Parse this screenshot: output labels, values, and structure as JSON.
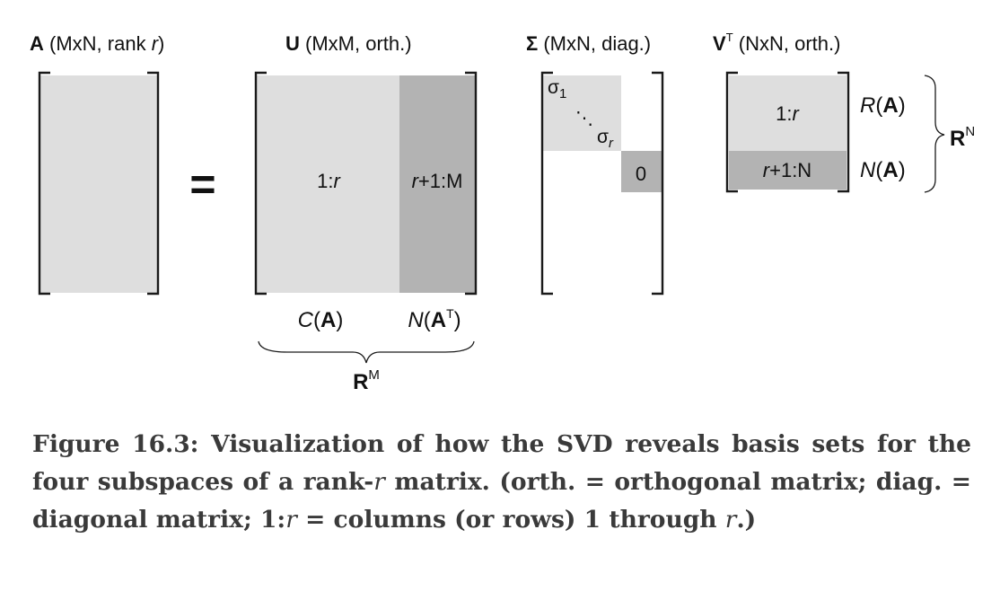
{
  "matrix_a": {
    "symbol": "A",
    "desc": " (MxN, rank ",
    "rank": "r",
    "close": ")"
  },
  "equals": "=",
  "matrix_u": {
    "symbol": "U",
    "desc": " (MxM, orth.)",
    "left_cell_num": "1:",
    "left_cell_var": "r",
    "right_cell_var": "r",
    "right_cell_num": "+1:M",
    "col_space": {
      "fn": "C",
      "open": "(",
      "arg": "A",
      "close": ")"
    },
    "left_null": {
      "fn": "N",
      "open": "(",
      "arg": "A",
      "sup": "T",
      "close": ")"
    },
    "space": {
      "sym": "R",
      "sup": "M"
    }
  },
  "matrix_sigma": {
    "symbol": "Σ",
    "desc": " (MxN, diag.)",
    "sigma": "σ",
    "sigma_first_sub": "1",
    "sigma_last_sub": "r",
    "dots": "⋱",
    "zero": "0"
  },
  "matrix_vt": {
    "symbol": "V",
    "sup": "T",
    "desc": " (NxN, orth.)",
    "top_cell_num": "1:",
    "top_cell_var": "r",
    "bottom_cell_var": "r",
    "bottom_cell_num": "+1:N",
    "row_space": {
      "fn": "R",
      "open": "(",
      "arg": "A",
      "close": ")"
    },
    "null_space": {
      "fn": "N",
      "open": "(",
      "arg": "A",
      "close": ")"
    },
    "space": {
      "sym": "R",
      "sup": "N"
    }
  },
  "caption": {
    "t1": "Figure 16.3: Visualization of how the SVD reveals basis sets for the four subspaces of a rank-",
    "r1": "r",
    "t2": " matrix. (orth. = orthogonal matrix; diag. = diagonal matrix; 1:",
    "r2": "r",
    "t3": " = columns (or rows) 1 through ",
    "r3": "r",
    "t4": ".)"
  },
  "colors": {
    "light_fill": "#dedede",
    "dark_fill": "#b3b3b3",
    "stroke": "#1a1a1a",
    "caption": "#3a3a3a"
  }
}
